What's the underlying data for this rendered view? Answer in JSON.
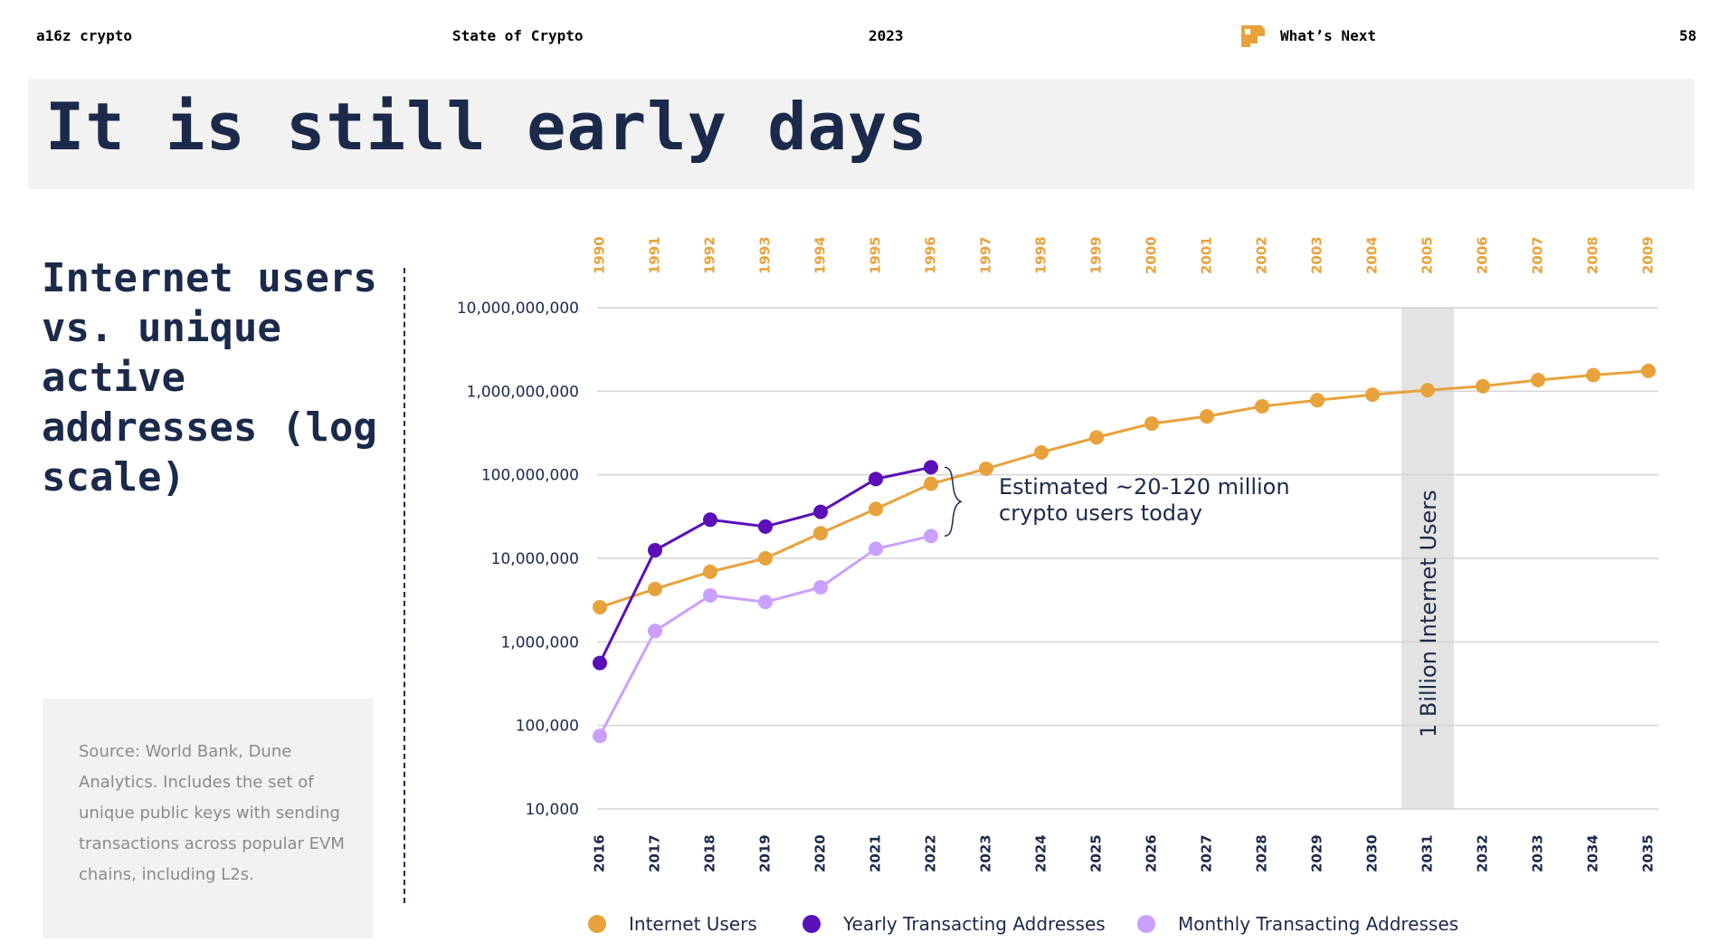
{
  "header": {
    "brand": "a16z crypto",
    "report": "State of Crypto",
    "year": "2023",
    "section": "What’s Next",
    "page_number": "58",
    "brand_color": "#e8a23c"
  },
  "title": "It is still early days",
  "subtitle": "Internet users vs. unique active addresses (log scale)",
  "source": "Source: World Bank, Dune Analytics. Includes the set of unique public keys with sending transactions across popular EVM chains, including L2s.",
  "chart_data": {
    "type": "line",
    "y_scale": "log",
    "ylim": [
      10000,
      10000000000
    ],
    "y_ticks": [
      "10,000",
      "100,000",
      "1,000,000",
      "10,000,000",
      "100,000,000",
      "1,000,000,000",
      "10,000,000,000"
    ],
    "x_bottom": [
      "2016",
      "2017",
      "2018",
      "2019",
      "2020",
      "2021",
      "2022",
      "2023",
      "2024",
      "2025",
      "2026",
      "2027",
      "2028",
      "2029",
      "2030",
      "2031",
      "2032",
      "2033",
      "2034",
      "2035"
    ],
    "x_top": [
      "1990",
      "1991",
      "1992",
      "1993",
      "1994",
      "1995",
      "1996",
      "1997",
      "1998",
      "1999",
      "2000",
      "2001",
      "2002",
      "2003",
      "2004",
      "2005",
      "2006",
      "2007",
      "2008",
      "2009"
    ],
    "grid": true,
    "series": [
      {
        "name": "Internet Users",
        "color": "#e8a23c",
        "values": [
          2600000,
          4300000,
          6900000,
          10000000,
          20000000,
          39000000,
          78000000,
          118000000,
          185000000,
          280000000,
          410000000,
          500000000,
          660000000,
          780000000,
          910000000,
          1030000000,
          1150000000,
          1360000000,
          1560000000,
          1750000000
        ]
      },
      {
        "name": "Yearly Transacting Addresses",
        "color": "#5b0fb8",
        "values": [
          560000,
          12500000,
          29000000,
          24000000,
          36000000,
          89000000,
          123000000
        ]
      },
      {
        "name": "Monthly Transacting Addresses",
        "color": "#c9a0ff",
        "values": [
          75000,
          1350000,
          3600000,
          3000000,
          4500000,
          13000000,
          18500000
        ]
      }
    ],
    "highlight": {
      "x": "2031",
      "x_top": "2005",
      "label": "1 Billion Internet Users",
      "color": "#e3e3e3"
    },
    "annotation": {
      "lines": [
        "Estimated ~20-120 million",
        "crypto users today"
      ]
    }
  }
}
